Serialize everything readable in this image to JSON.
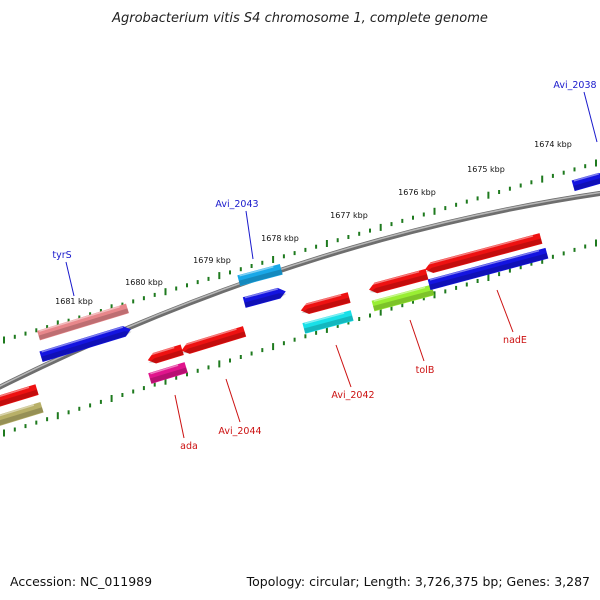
{
  "title": "Agrobacterium vitis S4 chromosome 1, complete genome",
  "footer": {
    "accession": "Accession: NC_011989",
    "summary": "Topology: circular; Length: 3,726,375 bp; Genes: 3,287"
  },
  "colors": {
    "backbone": "#8c8c8c",
    "tick": "#1e7a1e",
    "label_forward": "#1a1acc",
    "label_reverse": "#cc1111"
  },
  "tick_labels": [
    "1681 kbp",
    "1680 kbp",
    "1679 kbp",
    "1678 kbp",
    "1677 kbp",
    "1676 kbp",
    "1675 kbp",
    "1674 kbp"
  ],
  "gene_labels": [
    {
      "name": "tyrS",
      "strand": "forward"
    },
    {
      "name": "Avi_2043",
      "strand": "forward"
    },
    {
      "name": "Avi_2038",
      "strand": "forward"
    },
    {
      "name": "ada",
      "strand": "reverse"
    },
    {
      "name": "Avi_2044",
      "strand": "reverse"
    },
    {
      "name": "Avi_2042",
      "strand": "reverse"
    },
    {
      "name": "tolB",
      "strand": "reverse"
    },
    {
      "name": "nadE",
      "strand": "reverse"
    }
  ]
}
